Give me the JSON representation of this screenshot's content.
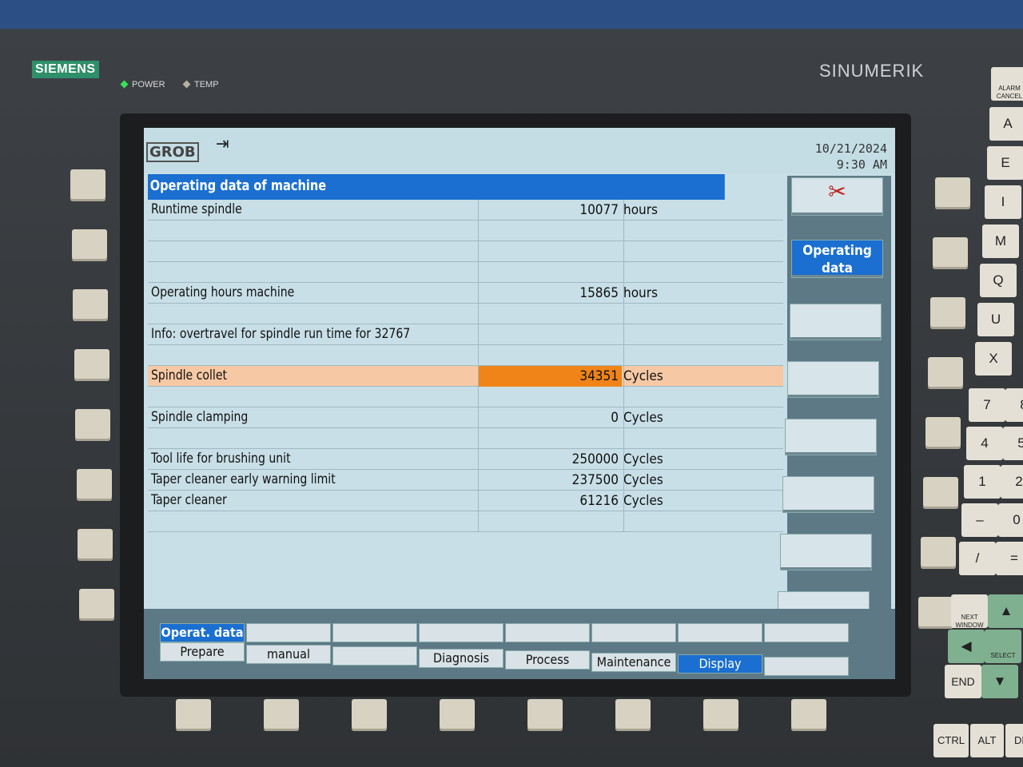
{
  "bezel": {
    "brand": "SIEMENS",
    "product": "SINUMERIK",
    "leds": [
      {
        "label": "POWER",
        "color": "#39e05a"
      },
      {
        "label": "TEMP",
        "color": "#b8b0a0"
      }
    ]
  },
  "header": {
    "logo": "GROB",
    "exit_icon": "exit-arrow-icon",
    "date": "10/21/2024",
    "time": "9:30 AM"
  },
  "title": "Operating data of machine",
  "rows": [
    {
      "label": "Runtime spindle",
      "value": "10077",
      "unit": "hours"
    },
    {
      "label": "",
      "value": "",
      "unit": ""
    },
    {
      "label": "",
      "value": "",
      "unit": ""
    },
    {
      "label": "",
      "value": "",
      "unit": ""
    },
    {
      "label": "Operating hours machine",
      "value": "15865",
      "unit": "hours"
    },
    {
      "label": "",
      "value": "",
      "unit": ""
    },
    {
      "label": "Info: overtravel for spindle run time for 32767",
      "value": "",
      "unit": ""
    },
    {
      "label": "",
      "value": "",
      "unit": ""
    },
    {
      "label": "Spindle collet",
      "value": "34351",
      "unit": "Cycles",
      "selected": true
    },
    {
      "label": "",
      "value": "",
      "unit": ""
    },
    {
      "label": "Spindle clamping",
      "value": "0",
      "unit": "Cycles"
    },
    {
      "label": "",
      "value": "",
      "unit": ""
    },
    {
      "label": "Tool life for brushing unit",
      "value": "250000",
      "unit": "Cycles"
    },
    {
      "label": "Taper cleaner early warning limit",
      "value": "237500",
      "unit": "Cycles"
    },
    {
      "label": "Taper cleaner",
      "value": "61216",
      "unit": "Cycles"
    },
    {
      "label": "",
      "value": "",
      "unit": ""
    }
  ],
  "vertical_softkeys": {
    "icon": "tools-icon",
    "active": "Operating data",
    "active_line1": "Operating",
    "active_line2": "data"
  },
  "horizontal_softkeys": {
    "top": [
      "Operat. data",
      "",
      "",
      "",
      "",
      "",
      "",
      ""
    ],
    "bottom": [
      "Prepare",
      "manual",
      "",
      "Diagnosis",
      "Process",
      "Maintenance",
      "Display",
      ""
    ],
    "active_bottom": "Display"
  },
  "keypad": {
    "letters": [
      "A",
      "E",
      "I",
      "M",
      "Q",
      "U",
      "X"
    ],
    "numbers": [
      "7",
      "4",
      "1",
      "–",
      "/"
    ],
    "alarm_cancel": "ALARM CANCEL",
    "next_window": "NEXT WINDOW",
    "select": "SELECT",
    "end": "END",
    "ctrl": "CTRL",
    "alt": "ALT",
    "del": "DE"
  }
}
